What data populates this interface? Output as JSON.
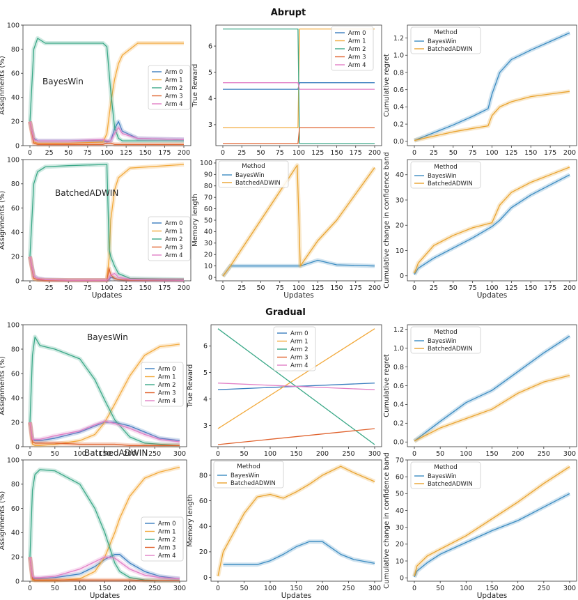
{
  "colors": {
    "arm0": "#3a7dbf",
    "arm1": "#f2a93b",
    "arm2": "#3aa887",
    "arm3": "#e0622d",
    "arm4": "#e27fc6",
    "bayes": "#3a8bc1",
    "adwin": "#e9a32e"
  },
  "sections": [
    {
      "title": "Abrupt",
      "xmax": 200,
      "xticks": [
        0,
        25,
        50,
        75,
        100,
        125,
        150,
        175,
        200
      ]
    },
    {
      "title": "Gradual",
      "xmax": 300,
      "xticks": [
        0,
        50,
        100,
        150,
        200,
        250,
        300
      ]
    }
  ],
  "xlabel": "Updates",
  "legend_arms": [
    "Arm 0",
    "Arm 1",
    "Arm 2",
    "Arm 3",
    "Arm 4"
  ],
  "legend_methods_title": "Method",
  "legend_methods": [
    "BayesWin",
    "BatchedADWIN"
  ],
  "chart_data": [
    {
      "id": "abrupt-bayeswin-assign",
      "type": "line",
      "annotation": "BayesWin",
      "ylabel": "Assignments (%)",
      "ylim": [
        0,
        100
      ],
      "yticks": [
        0,
        20,
        40,
        60,
        80,
        100
      ],
      "x": [
        0,
        5,
        10,
        20,
        50,
        95,
        100,
        105,
        110,
        115,
        120,
        140,
        200
      ],
      "series": [
        {
          "name": "Arm 0",
          "values": [
            20,
            6,
            4,
            4,
            4,
            4,
            3,
            4,
            14,
            20,
            12,
            6,
            5
          ]
        },
        {
          "name": "Arm 1",
          "values": [
            20,
            3,
            2,
            2,
            2,
            3,
            10,
            35,
            55,
            68,
            75,
            85,
            85
          ]
        },
        {
          "name": "Arm 2",
          "values": [
            20,
            80,
            89,
            85,
            85,
            85,
            82,
            45,
            15,
            6,
            4,
            4,
            4
          ]
        },
        {
          "name": "Arm 3",
          "values": [
            20,
            2,
            1,
            1,
            1,
            1,
            2,
            2,
            1,
            1,
            1,
            1,
            1
          ]
        },
        {
          "name": "Arm 4",
          "values": [
            20,
            5,
            4,
            4,
            4,
            5,
            4,
            4,
            10,
            15,
            10,
            6,
            5
          ]
        }
      ]
    },
    {
      "id": "abrupt-true-reward",
      "type": "line",
      "ylabel": "True Reward",
      "ylim": [
        2.2,
        6.8
      ],
      "yticks": [
        3,
        4,
        5,
        6
      ],
      "x": [
        0,
        99,
        101,
        200
      ],
      "series": [
        {
          "name": "Arm 0",
          "values": [
            4.35,
            4.35,
            4.6,
            4.6
          ]
        },
        {
          "name": "Arm 1",
          "values": [
            2.88,
            2.88,
            6.65,
            6.65
          ]
        },
        {
          "name": "Arm 2",
          "values": [
            6.65,
            6.65,
            2.28,
            2.28
          ]
        },
        {
          "name": "Arm 3",
          "values": [
            2.28,
            2.28,
            2.88,
            2.88
          ]
        },
        {
          "name": "Arm 4",
          "values": [
            4.6,
            4.6,
            4.35,
            4.35
          ]
        }
      ]
    },
    {
      "id": "abrupt-cum-regret",
      "type": "line",
      "ylabel": "Cumulative regret",
      "ylim": [
        -0.05,
        1.35
      ],
      "yticks": [
        0.0,
        0.2,
        0.4,
        0.6,
        0.8,
        1.0,
        1.2
      ],
      "x": [
        0,
        25,
        50,
        75,
        95,
        100,
        110,
        125,
        150,
        175,
        200
      ],
      "series": [
        {
          "name": "BayesWin",
          "values": [
            0.01,
            0.1,
            0.19,
            0.29,
            0.38,
            0.55,
            0.8,
            0.95,
            1.06,
            1.16,
            1.26
          ]
        },
        {
          "name": "BatchedADWIN",
          "values": [
            0.01,
            0.06,
            0.11,
            0.15,
            0.18,
            0.3,
            0.4,
            0.46,
            0.52,
            0.55,
            0.58
          ]
        }
      ]
    },
    {
      "id": "abrupt-batchedadwin-assign",
      "type": "line",
      "annotation": "BatchedADWIN",
      "ylabel": "Assignments (%)",
      "ylim": [
        0,
        100
      ],
      "yticks": [
        0,
        20,
        40,
        60,
        80,
        100
      ],
      "x": [
        0,
        5,
        10,
        20,
        50,
        100,
        103,
        105,
        110,
        115,
        130,
        200
      ],
      "series": [
        {
          "name": "Arm 0",
          "values": [
            20,
            4,
            2,
            1,
            0.5,
            0.5,
            1,
            3,
            2,
            1,
            0.5,
            0.5
          ]
        },
        {
          "name": "Arm 1",
          "values": [
            20,
            2,
            1,
            0.5,
            0.5,
            0.5,
            20,
            50,
            75,
            85,
            93,
            96
          ]
        },
        {
          "name": "Arm 2",
          "values": [
            20,
            80,
            90,
            94,
            95,
            96,
            26,
            20,
            12,
            6,
            2,
            1
          ]
        },
        {
          "name": "Arm 3",
          "values": [
            20,
            2,
            1,
            0.5,
            0.5,
            0.5,
            10,
            5,
            2,
            1,
            0.5,
            0.5
          ]
        },
        {
          "name": "Arm 4",
          "values": [
            20,
            4,
            2,
            1,
            0.5,
            0.5,
            2,
            5,
            6,
            3,
            1,
            0.5
          ]
        }
      ]
    },
    {
      "id": "abrupt-memory-length",
      "type": "line",
      "ylabel": "Memory length",
      "ylim": [
        -3,
        103
      ],
      "yticks": [
        0,
        10,
        20,
        30,
        40,
        50,
        60,
        70,
        80,
        90,
        100
      ],
      "x": [
        0,
        10,
        50,
        98,
        100,
        102,
        125,
        150,
        200
      ],
      "series": [
        {
          "name": "BayesWin",
          "values": [
            1,
            10,
            10,
            10,
            10,
            10,
            15,
            11,
            10
          ]
        },
        {
          "name": "BatchedADWIN",
          "values": [
            1,
            10,
            50,
            98,
            55,
            10,
            32,
            50,
            96
          ]
        }
      ]
    },
    {
      "id": "abrupt-cum-change",
      "type": "line",
      "ylabel": "Cumulative change in confidence band",
      "ylim": [
        -2,
        46
      ],
      "yticks": [
        0,
        10,
        20,
        30,
        40
      ],
      "x": [
        0,
        5,
        25,
        50,
        75,
        100,
        110,
        125,
        150,
        175,
        200
      ],
      "series": [
        {
          "name": "BayesWin",
          "values": [
            0.5,
            3,
            7,
            11,
            15,
            19.5,
            22,
            27,
            32,
            36,
            40
          ]
        },
        {
          "name": "BatchedADWIN",
          "values": [
            1,
            5,
            12,
            16,
            19,
            21,
            28,
            33,
            37,
            40,
            43
          ]
        }
      ]
    },
    {
      "id": "gradual-bayeswin-assign",
      "type": "line",
      "annotation": "BayesWin",
      "ylabel": "Assignments (%)",
      "ylim": [
        0,
        100
      ],
      "yticks": [
        0,
        20,
        40,
        60,
        80,
        100
      ],
      "x": [
        0,
        5,
        10,
        20,
        50,
        100,
        130,
        150,
        170,
        200,
        230,
        260,
        300
      ],
      "series": [
        {
          "name": "Arm 0",
          "values": [
            20,
            6,
            5,
            5,
            7,
            12,
            17,
            20,
            20,
            17,
            12,
            7,
            5
          ]
        },
        {
          "name": "Arm 1",
          "values": [
            20,
            2,
            1,
            1,
            2,
            5,
            10,
            20,
            35,
            58,
            75,
            82,
            84
          ]
        },
        {
          "name": "Arm 2",
          "values": [
            20,
            75,
            90,
            83,
            80,
            72,
            55,
            38,
            22,
            8,
            3,
            2,
            1
          ]
        },
        {
          "name": "Arm 3",
          "values": [
            20,
            4,
            3,
            3,
            3,
            2,
            2,
            2,
            2,
            1,
            1,
            1,
            1
          ]
        },
        {
          "name": "Arm 4",
          "values": [
            20,
            6,
            6,
            6,
            9,
            13,
            18,
            21,
            19,
            15,
            10,
            6,
            4
          ]
        }
      ]
    },
    {
      "id": "gradual-true-reward",
      "type": "line",
      "ylabel": "True Reward",
      "ylim": [
        2.2,
        6.8
      ],
      "yticks": [
        3,
        4,
        5,
        6
      ],
      "x": [
        0,
        300
      ],
      "series": [
        {
          "name": "Arm 0",
          "values": [
            4.35,
            4.6
          ]
        },
        {
          "name": "Arm 1",
          "values": [
            2.88,
            6.65
          ]
        },
        {
          "name": "Arm 2",
          "values": [
            6.65,
            2.28
          ]
        },
        {
          "name": "Arm 3",
          "values": [
            2.28,
            2.88
          ]
        },
        {
          "name": "Arm 4",
          "values": [
            4.6,
            4.35
          ]
        }
      ]
    },
    {
      "id": "gradual-cum-regret",
      "type": "line",
      "ylabel": "Cumulative regret",
      "ylim": [
        -0.05,
        1.25
      ],
      "yticks": [
        0.0,
        0.2,
        0.4,
        0.6,
        0.8,
        1.0,
        1.2
      ],
      "x": [
        0,
        50,
        100,
        150,
        200,
        250,
        300
      ],
      "series": [
        {
          "name": "BayesWin",
          "values": [
            0.01,
            0.22,
            0.42,
            0.55,
            0.75,
            0.95,
            1.13
          ]
        },
        {
          "name": "BatchedADWIN",
          "values": [
            0.01,
            0.15,
            0.25,
            0.35,
            0.52,
            0.64,
            0.71
          ]
        }
      ]
    },
    {
      "id": "gradual-batchedadwin-assign",
      "type": "line",
      "annotation": "BatchedADWIN",
      "ylabel": "Assignments (%)",
      "ylim": [
        0,
        100
      ],
      "yticks": [
        0,
        20,
        40,
        60,
        80,
        100
      ],
      "x": [
        0,
        5,
        10,
        20,
        50,
        100,
        130,
        150,
        170,
        180,
        200,
        230,
        260,
        300
      ],
      "series": [
        {
          "name": "Arm 0",
          "values": [
            20,
            3,
            2,
            2,
            3,
            6,
            12,
            18,
            22,
            22,
            15,
            8,
            4,
            2
          ]
        },
        {
          "name": "Arm 1",
          "values": [
            20,
            1,
            0.5,
            0.5,
            0.5,
            2,
            8,
            20,
            40,
            52,
            70,
            85,
            90,
            94
          ]
        },
        {
          "name": "Arm 2",
          "values": [
            20,
            75,
            88,
            92,
            91,
            80,
            60,
            40,
            15,
            8,
            3,
            1,
            0.5,
            0.5
          ]
        },
        {
          "name": "Arm 3",
          "values": [
            20,
            2,
            1,
            1,
            1,
            1,
            1,
            1,
            1,
            1,
            1,
            0.5,
            0.5,
            0.5
          ]
        },
        {
          "name": "Arm 4",
          "values": [
            20,
            4,
            3,
            3,
            4,
            10,
            16,
            20,
            19,
            16,
            10,
            5,
            3,
            2
          ]
        }
      ]
    },
    {
      "id": "gradual-memory-length",
      "type": "line",
      "ylabel": "Memory length",
      "ylim": [
        -3,
        92
      ],
      "yticks": [
        0,
        20,
        40,
        60,
        80
      ],
      "x": [
        0,
        10,
        50,
        75,
        100,
        125,
        150,
        175,
        200,
        235,
        260,
        300
      ],
      "series": [
        {
          "name": "BayesWin",
          "values": [
            null,
            10,
            10,
            10,
            13,
            18,
            24,
            28,
            28,
            18,
            14,
            11
          ]
        },
        {
          "name": "BatchedADWIN",
          "values": [
            1,
            20,
            50,
            63,
            65,
            62,
            67,
            73,
            80,
            87,
            82,
            75
          ]
        }
      ]
    },
    {
      "id": "gradual-cum-change",
      "type": "line",
      "ylabel": "Cumulative change in confidence band",
      "ylim": [
        -2,
        70
      ],
      "yticks": [
        0,
        10,
        20,
        30,
        40,
        50,
        60,
        70
      ],
      "x": [
        0,
        5,
        25,
        50,
        100,
        150,
        200,
        250,
        300
      ],
      "series": [
        {
          "name": "BayesWin",
          "values": [
            0.5,
            4,
            9,
            14,
            21,
            28,
            34,
            42,
            50
          ]
        },
        {
          "name": "BatchedADWIN",
          "values": [
            1,
            7,
            13,
            17,
            25,
            35,
            45,
            56,
            66
          ]
        }
      ]
    }
  ]
}
